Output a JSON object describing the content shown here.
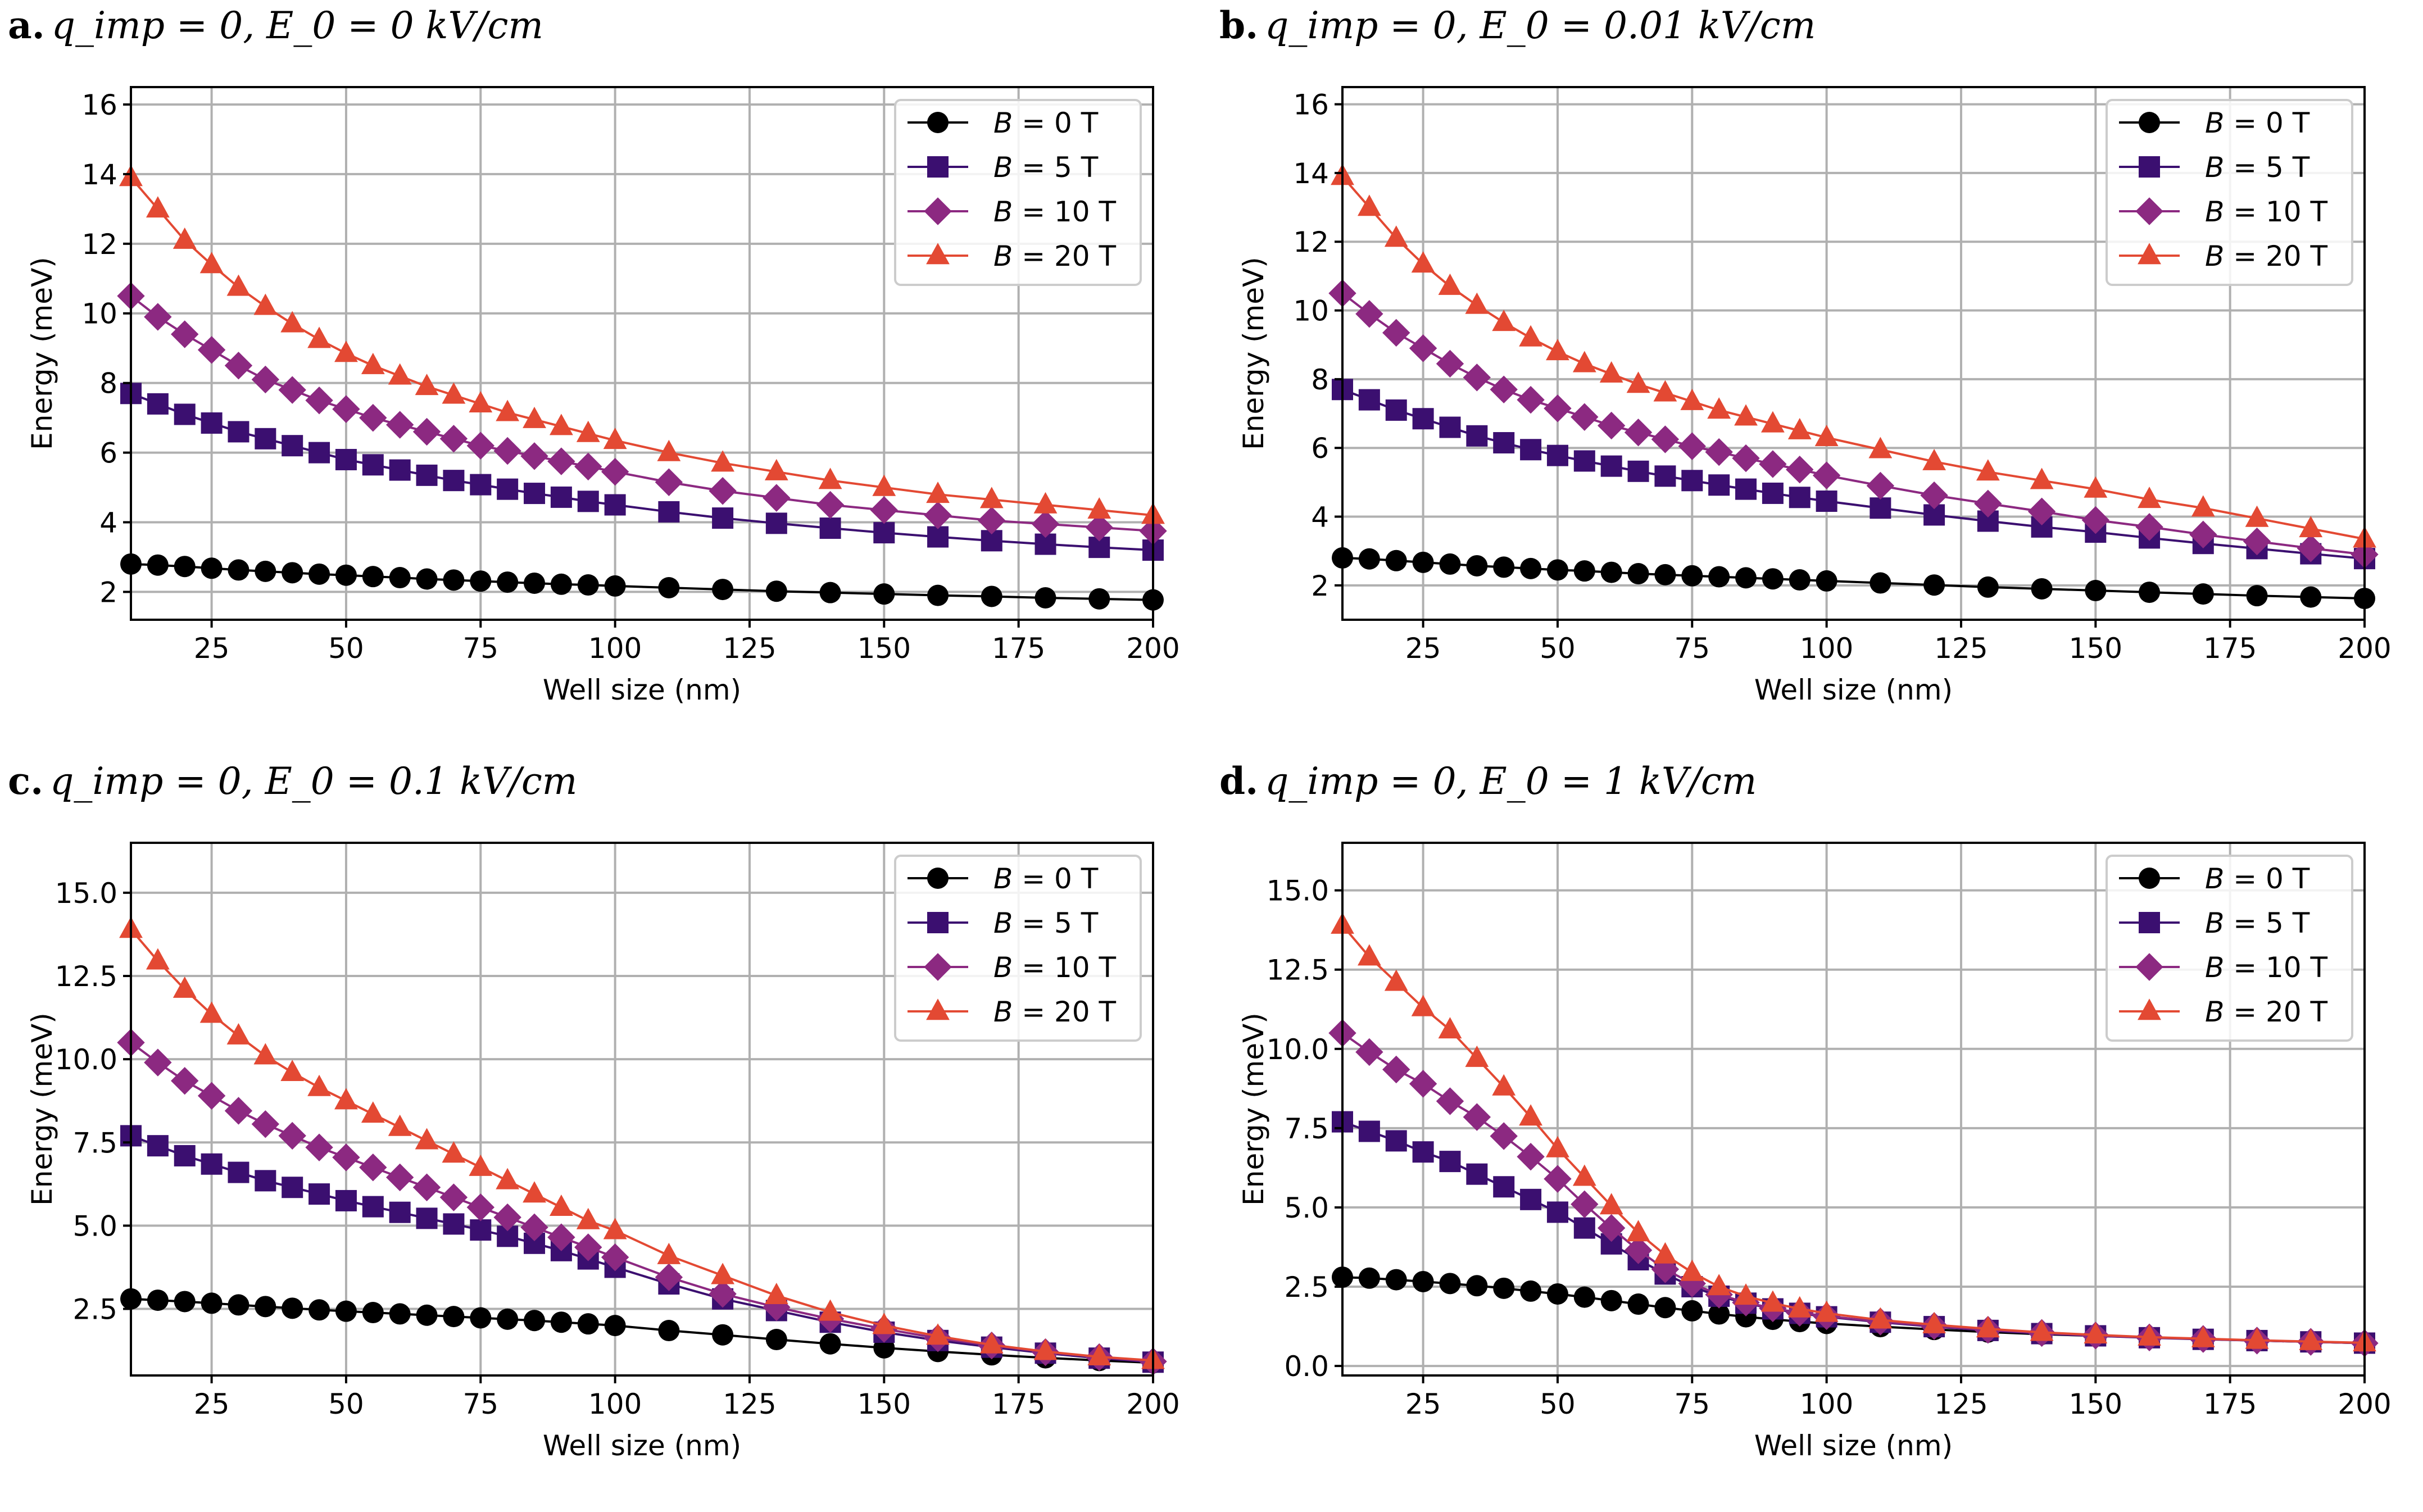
{
  "figure": {
    "xlabel": "Well size (nm)",
    "ylabel": "Energy (meV)",
    "series_colors": {
      "B = 0 T": "#000000",
      "B = 5 T": "#3b0f70",
      "B = 10 T": "#8c2981",
      "B = 20 T": "#e34933"
    },
    "grid_color": "#b0b0b0"
  },
  "chart_data": [
    {
      "type": "line",
      "panel_letter": "a.",
      "title": "q_imp = 0, E_0 = 0 kV/cm",
      "xlabel": "Well size (nm)",
      "ylabel": "Energy (meV)",
      "xlim": [
        10,
        200
      ],
      "ylim": [
        1.2,
        16.5
      ],
      "xticks": [
        25,
        50,
        75,
        100,
        125,
        150,
        175,
        200
      ],
      "yticks": [
        2,
        4,
        6,
        8,
        10,
        12,
        14,
        16
      ],
      "ytick_labels": [
        "2",
        "4",
        "6",
        "8",
        "10",
        "12",
        "14",
        "16"
      ],
      "grid": true,
      "legend_position": "top-right",
      "x": [
        10,
        15,
        20,
        25,
        30,
        35,
        40,
        45,
        50,
        55,
        60,
        65,
        70,
        75,
        80,
        85,
        90,
        95,
        100,
        110,
        120,
        130,
        140,
        150,
        160,
        170,
        180,
        190,
        200
      ],
      "series": [
        {
          "name": "B = 0 T",
          "label_var": "B",
          "label_rest": " = 0 T",
          "marker": "circle",
          "color": "#000000",
          "values": [
            2.8,
            2.77,
            2.73,
            2.68,
            2.63,
            2.59,
            2.55,
            2.51,
            2.48,
            2.44,
            2.41,
            2.37,
            2.34,
            2.31,
            2.28,
            2.25,
            2.22,
            2.2,
            2.17,
            2.12,
            2.07,
            2.02,
            1.98,
            1.94,
            1.9,
            1.87,
            1.83,
            1.8,
            1.77
          ]
        },
        {
          "name": "B = 5 T",
          "label_var": "B",
          "label_rest": " = 5 T",
          "marker": "square",
          "color": "#3b0f70",
          "values": [
            7.7,
            7.4,
            7.1,
            6.85,
            6.6,
            6.4,
            6.2,
            6.0,
            5.8,
            5.65,
            5.5,
            5.35,
            5.2,
            5.08,
            4.95,
            4.83,
            4.72,
            4.6,
            4.5,
            4.3,
            4.12,
            3.97,
            3.83,
            3.7,
            3.58,
            3.47,
            3.37,
            3.28,
            3.2
          ]
        },
        {
          "name": "B = 10 T",
          "label_var": "B",
          "label_rest": " = 10 T",
          "marker": "diamond",
          "color": "#8c2981",
          "values": [
            10.5,
            9.9,
            9.4,
            8.95,
            8.5,
            8.1,
            7.8,
            7.5,
            7.25,
            7.0,
            6.8,
            6.6,
            6.4,
            6.2,
            6.05,
            5.9,
            5.75,
            5.6,
            5.45,
            5.15,
            4.9,
            4.7,
            4.5,
            4.35,
            4.2,
            4.05,
            3.95,
            3.85,
            3.75
          ]
        },
        {
          "name": "B = 20 T",
          "label_var": "B",
          "label_rest": " = 20 T",
          "marker": "triangle",
          "color": "#e34933",
          "values": [
            13.9,
            13.0,
            12.1,
            11.4,
            10.75,
            10.2,
            9.7,
            9.25,
            8.85,
            8.5,
            8.2,
            7.9,
            7.65,
            7.4,
            7.15,
            6.95,
            6.75,
            6.55,
            6.35,
            6.0,
            5.7,
            5.45,
            5.2,
            5.0,
            4.8,
            4.65,
            4.5,
            4.35,
            4.2
          ]
        }
      ]
    },
    {
      "type": "line",
      "panel_letter": "b.",
      "title": "q_imp = 0, E_0 = 0.01 kV/cm",
      "xlabel": "Well size (nm)",
      "ylabel": "Energy (meV)",
      "xlim": [
        10,
        200
      ],
      "ylim": [
        1.0,
        16.5
      ],
      "xticks": [
        25,
        50,
        75,
        100,
        125,
        150,
        175,
        200
      ],
      "yticks": [
        2,
        4,
        6,
        8,
        10,
        12,
        14,
        16
      ],
      "ytick_labels": [
        "2",
        "4",
        "6",
        "8",
        "10",
        "12",
        "14",
        "16"
      ],
      "grid": true,
      "legend_position": "top-right",
      "x": [
        10,
        15,
        20,
        25,
        30,
        35,
        40,
        45,
        50,
        55,
        60,
        65,
        70,
        75,
        80,
        85,
        90,
        95,
        100,
        110,
        120,
        130,
        140,
        150,
        160,
        170,
        180,
        190,
        200
      ],
      "series": [
        {
          "name": "B = 0 T",
          "label_var": "B",
          "label_rest": " = 0 T",
          "marker": "circle",
          "color": "#000000",
          "values": [
            2.8,
            2.77,
            2.72,
            2.67,
            2.62,
            2.57,
            2.53,
            2.49,
            2.45,
            2.42,
            2.38,
            2.34,
            2.31,
            2.28,
            2.25,
            2.22,
            2.19,
            2.16,
            2.13,
            2.07,
            2.01,
            1.95,
            1.9,
            1.85,
            1.8,
            1.75,
            1.7,
            1.66,
            1.62
          ]
        },
        {
          "name": "B = 5 T",
          "label_var": "B",
          "label_rest": " = 5 T",
          "marker": "square",
          "color": "#3b0f70",
          "values": [
            7.7,
            7.4,
            7.1,
            6.85,
            6.6,
            6.35,
            6.15,
            5.95,
            5.78,
            5.62,
            5.47,
            5.32,
            5.18,
            5.05,
            4.92,
            4.8,
            4.68,
            4.56,
            4.45,
            4.25,
            4.05,
            3.87,
            3.7,
            3.55,
            3.38,
            3.22,
            3.07,
            2.92,
            2.78
          ]
        },
        {
          "name": "B = 10 T",
          "label_var": "B",
          "label_rest": " = 10 T",
          "marker": "diamond",
          "color": "#8c2981",
          "values": [
            10.5,
            9.9,
            9.35,
            8.9,
            8.45,
            8.05,
            7.7,
            7.4,
            7.15,
            6.9,
            6.65,
            6.45,
            6.25,
            6.05,
            5.88,
            5.7,
            5.53,
            5.37,
            5.2,
            4.9,
            4.62,
            4.38,
            4.15,
            3.9,
            3.7,
            3.48,
            3.28,
            3.08,
            2.9
          ]
        },
        {
          "name": "B = 20 T",
          "label_var": "B",
          "label_rest": " = 20 T",
          "marker": "triangle",
          "color": "#e34933",
          "values": [
            13.9,
            13.0,
            12.1,
            11.35,
            10.7,
            10.15,
            9.65,
            9.2,
            8.8,
            8.45,
            8.15,
            7.85,
            7.6,
            7.35,
            7.1,
            6.9,
            6.7,
            6.5,
            6.3,
            5.95,
            5.6,
            5.3,
            5.05,
            4.8,
            4.5,
            4.25,
            3.95,
            3.65,
            3.35
          ]
        }
      ]
    },
    {
      "type": "line",
      "panel_letter": "c.",
      "title": "q_imp = 0, E_0 = 0.1 kV/cm",
      "xlabel": "Well size (nm)",
      "ylabel": "Energy (meV)",
      "xlim": [
        10,
        200
      ],
      "ylim": [
        0.5,
        16.5
      ],
      "xticks": [
        25,
        50,
        75,
        100,
        125,
        150,
        175,
        200
      ],
      "yticks": [
        2.5,
        5.0,
        7.5,
        10.0,
        12.5,
        15.0
      ],
      "ytick_labels": [
        "2.5",
        "5.0",
        "7.5",
        "10.0",
        "12.5",
        "15.0"
      ],
      "grid": true,
      "legend_position": "top-right",
      "x": [
        10,
        15,
        20,
        25,
        30,
        35,
        40,
        45,
        50,
        55,
        60,
        65,
        70,
        75,
        80,
        85,
        90,
        95,
        100,
        110,
        120,
        130,
        140,
        150,
        160,
        170,
        180,
        190,
        200
      ],
      "series": [
        {
          "name": "B = 0 T",
          "label_var": "B",
          "label_rest": " = 0 T",
          "marker": "circle",
          "color": "#000000",
          "values": [
            2.8,
            2.76,
            2.72,
            2.67,
            2.62,
            2.57,
            2.52,
            2.47,
            2.43,
            2.39,
            2.35,
            2.31,
            2.27,
            2.23,
            2.19,
            2.15,
            2.1,
            2.05,
            2.0,
            1.85,
            1.72,
            1.58,
            1.45,
            1.33,
            1.22,
            1.12,
            1.03,
            0.95,
            0.88
          ]
        },
        {
          "name": "B = 5 T",
          "label_var": "B",
          "label_rest": " = 5 T",
          "marker": "square",
          "color": "#3b0f70",
          "values": [
            7.7,
            7.4,
            7.1,
            6.85,
            6.6,
            6.35,
            6.15,
            5.95,
            5.75,
            5.57,
            5.4,
            5.22,
            5.05,
            4.87,
            4.68,
            4.47,
            4.25,
            4.0,
            3.75,
            3.25,
            2.8,
            2.45,
            2.1,
            1.8,
            1.55,
            1.35,
            1.17,
            1.02,
            0.9
          ]
        },
        {
          "name": "B = 10 T",
          "label_var": "B",
          "label_rest": " = 10 T",
          "marker": "diamond",
          "color": "#8c2981",
          "values": [
            10.5,
            9.9,
            9.35,
            8.9,
            8.45,
            8.05,
            7.7,
            7.35,
            7.05,
            6.75,
            6.45,
            6.15,
            5.85,
            5.55,
            5.25,
            4.95,
            4.65,
            4.35,
            4.05,
            3.45,
            2.95,
            2.55,
            2.2,
            1.9,
            1.62,
            1.4,
            1.2,
            1.05,
            0.92
          ]
        },
        {
          "name": "B = 20 T",
          "label_var": "B",
          "label_rest": " = 20 T",
          "marker": "triangle",
          "color": "#e34933",
          "values": [
            13.9,
            12.95,
            12.1,
            11.35,
            10.7,
            10.1,
            9.6,
            9.15,
            8.75,
            8.35,
            7.95,
            7.55,
            7.15,
            6.75,
            6.35,
            5.95,
            5.55,
            5.15,
            4.85,
            4.1,
            3.5,
            2.9,
            2.4,
            2.0,
            1.68,
            1.42,
            1.22,
            1.06,
            0.95
          ]
        }
      ]
    },
    {
      "type": "line",
      "panel_letter": "d.",
      "title": "q_imp = 0, E_0 = 1 kV/cm",
      "xlabel": "Well size (nm)",
      "ylabel": "Energy (meV)",
      "xlim": [
        10,
        200
      ],
      "ylim": [
        -0.3,
        16.5
      ],
      "xticks": [
        25,
        50,
        75,
        100,
        125,
        150,
        175,
        200
      ],
      "yticks": [
        0.0,
        2.5,
        5.0,
        7.5,
        10.0,
        12.5,
        15.0
      ],
      "ytick_labels": [
        "0.0",
        "2.5",
        "5.0",
        "7.5",
        "10.0",
        "12.5",
        "15.0"
      ],
      "grid": true,
      "legend_position": "top-right",
      "x": [
        10,
        15,
        20,
        25,
        30,
        35,
        40,
        45,
        50,
        55,
        60,
        65,
        70,
        75,
        80,
        85,
        90,
        95,
        100,
        110,
        120,
        130,
        140,
        150,
        160,
        170,
        180,
        190,
        200
      ],
      "series": [
        {
          "name": "B = 0 T",
          "label_var": "B",
          "label_rest": " = 0 T",
          "marker": "circle",
          "color": "#000000",
          "values": [
            2.8,
            2.77,
            2.72,
            2.66,
            2.6,
            2.53,
            2.45,
            2.36,
            2.27,
            2.17,
            2.06,
            1.95,
            1.84,
            1.74,
            1.64,
            1.55,
            1.47,
            1.4,
            1.34,
            1.24,
            1.15,
            1.07,
            1.0,
            0.95,
            0.9,
            0.85,
            0.8,
            0.76,
            0.72
          ]
        },
        {
          "name": "B = 5 T",
          "label_var": "B",
          "label_rest": " = 5 T",
          "marker": "square",
          "color": "#3b0f70",
          "values": [
            7.7,
            7.4,
            7.1,
            6.75,
            6.45,
            6.05,
            5.65,
            5.25,
            4.85,
            4.35,
            3.85,
            3.35,
            2.9,
            2.5,
            2.2,
            1.98,
            1.8,
            1.66,
            1.55,
            1.38,
            1.24,
            1.12,
            1.02,
            0.95,
            0.89,
            0.84,
            0.8,
            0.76,
            0.72
          ]
        },
        {
          "name": "B = 10 T",
          "label_var": "B",
          "label_rest": " = 10 T",
          "marker": "diamond",
          "color": "#8c2981",
          "values": [
            10.5,
            9.9,
            9.35,
            8.9,
            8.35,
            7.85,
            7.25,
            6.6,
            5.9,
            5.1,
            4.35,
            3.65,
            3.05,
            2.6,
            2.25,
            2.0,
            1.82,
            1.68,
            1.57,
            1.4,
            1.26,
            1.14,
            1.04,
            0.96,
            0.9,
            0.85,
            0.8,
            0.76,
            0.72
          ]
        },
        {
          "name": "B = 20 T",
          "label_var": "B",
          "label_rest": " = 20 T",
          "marker": "triangle",
          "color": "#e34933",
          "values": [
            13.9,
            12.9,
            12.1,
            11.3,
            10.6,
            9.7,
            8.8,
            7.85,
            6.85,
            5.95,
            5.05,
            4.2,
            3.5,
            2.95,
            2.5,
            2.2,
            1.98,
            1.8,
            1.66,
            1.45,
            1.3,
            1.17,
            1.06,
            0.98,
            0.91,
            0.86,
            0.81,
            0.77,
            0.73
          ]
        }
      ]
    }
  ]
}
